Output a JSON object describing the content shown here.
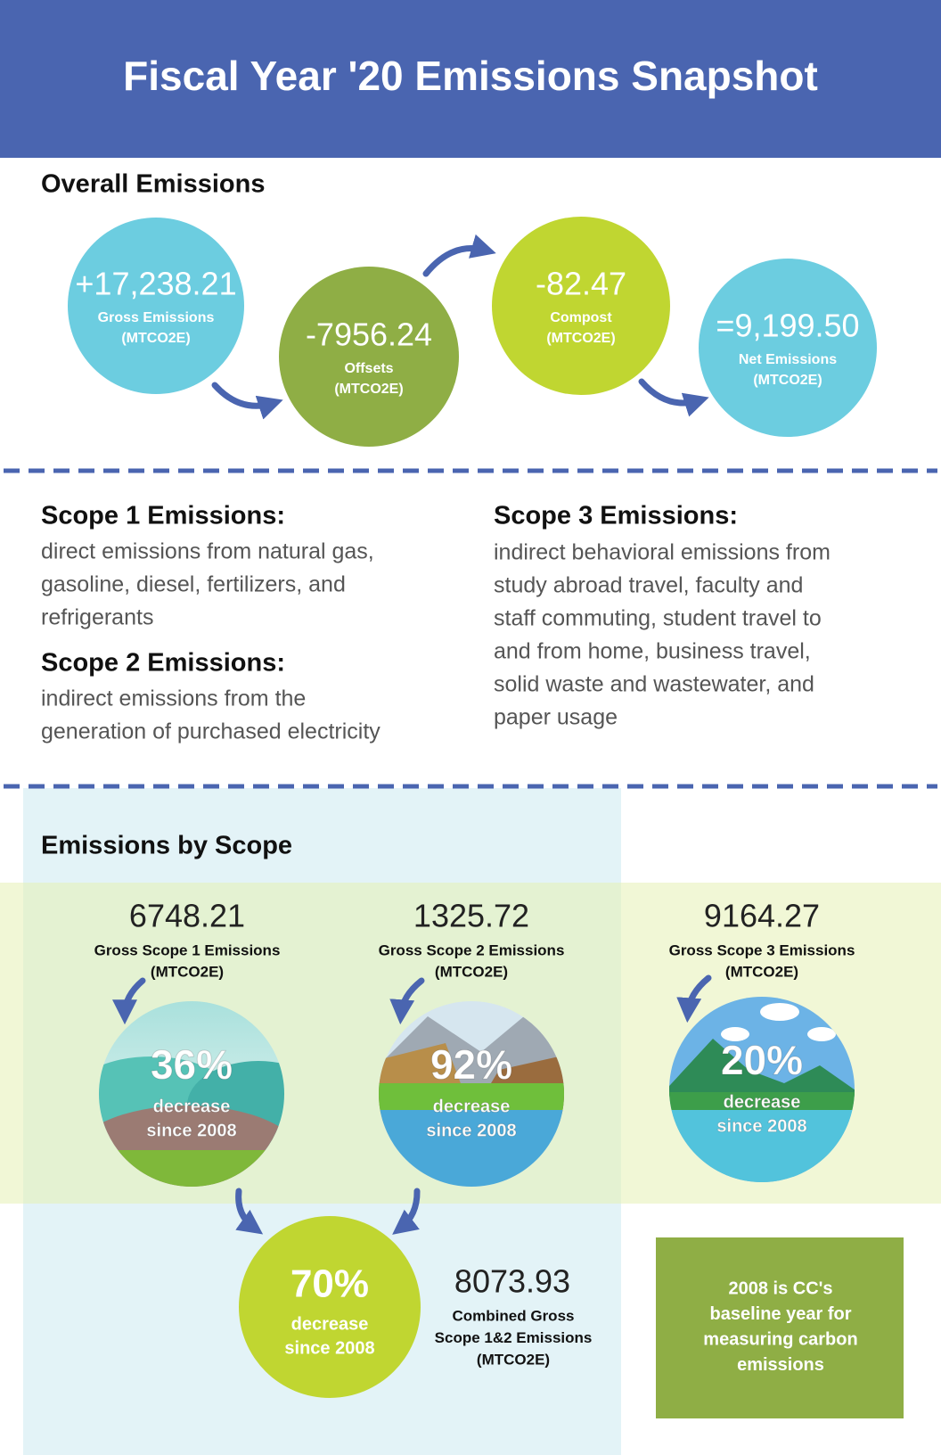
{
  "header": {
    "title": "Fiscal Year '20 Emissions Snapshot"
  },
  "overall": {
    "title": "Overall Emissions",
    "items": [
      {
        "value": "+17,238.21",
        "label": "Gross Emissions",
        "unit": "(MTCO2E)"
      },
      {
        "value": "-7956.24",
        "label": "Offsets",
        "unit": "(MTCO2E)"
      },
      {
        "value": "-82.47",
        "label": "Compost",
        "unit": "(MTCO2E)"
      },
      {
        "value": "=9,199.50",
        "label": "Net Emissions",
        "unit": "(MTCO2E)"
      }
    ]
  },
  "definitions": [
    {
      "title": "Scope 1 Emissions:",
      "lines": [
        "direct emissions from natural gas,",
        "gasoline, diesel, fertilizers, and",
        "refrigerants"
      ]
    },
    {
      "title": "Scope 2 Emissions:",
      "lines": [
        "indirect emissions from the",
        "generation of purchased electricity"
      ]
    },
    {
      "title": "Scope 3 Emissions:",
      "lines": [
        "indirect behavioral emissions from",
        "study abroad travel, faculty and",
        "staff commuting, student travel to",
        "and from home, business travel,",
        "solid waste and wastewater, and",
        "paper usage"
      ]
    }
  ],
  "by_scope": {
    "title": "Emissions by Scope",
    "scopes": [
      {
        "value": "6748.21",
        "label": "Gross Scope 1 Emissions",
        "unit": "(MTCO2E)",
        "percent": "36%",
        "change": "decrease",
        "since": "since 2008"
      },
      {
        "value": "1325.72",
        "label": "Gross Scope 2 Emissions",
        "unit": "(MTCO2E)",
        "percent": "92%",
        "change": "decrease",
        "since": "since 2008"
      },
      {
        "value": "9164.27",
        "label": "Gross Scope 3 Emissions",
        "unit": "(MTCO2E)",
        "percent": "20%",
        "change": "decrease",
        "since": "since 2008"
      }
    ],
    "combined": {
      "percent": "70%",
      "change": "decrease",
      "since": "since 2008",
      "value": "8073.93",
      "label_lines": [
        "Combined Gross",
        "Scope 1&2 Emissions",
        "(MTCO2E)"
      ]
    }
  },
  "note": {
    "lines": [
      "2008 is CC's",
      "baseline year for",
      "measuring carbon",
      "emissions"
    ]
  }
}
